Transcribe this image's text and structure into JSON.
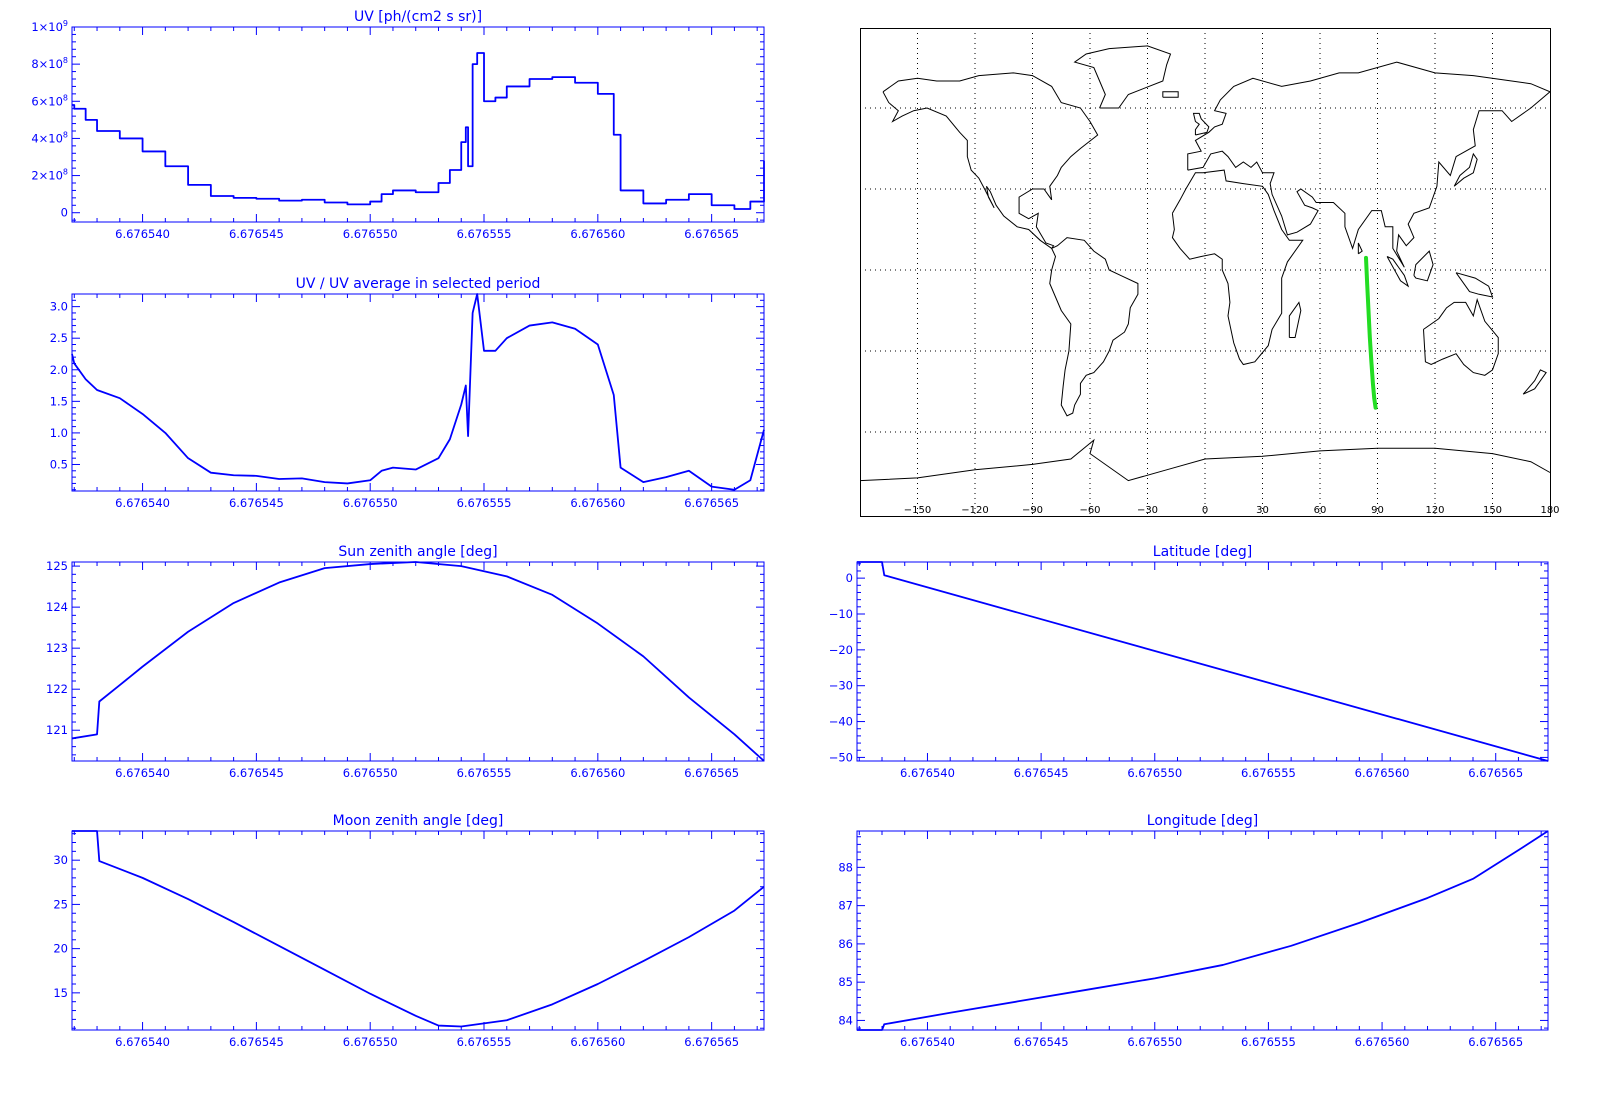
{
  "chart_data": [
    {
      "id": "uv",
      "type": "line",
      "title": "UV [ph/(cm2 s sr)]",
      "x_ticks": [
        "6.676540",
        "6.676545",
        "6.676550",
        "6.676555",
        "6.676560",
        "6.676565"
      ],
      "x_tick_values": [
        6.67654,
        6.676545,
        6.67655,
        6.676555,
        6.67656,
        6.676565
      ],
      "xlim": [
        6.6765369,
        6.6765673
      ],
      "y_ticks": [
        {
          "value": 0,
          "mant": "0",
          "exp": ""
        },
        {
          "value": 200000000,
          "mant": "2×10",
          "exp": "8"
        },
        {
          "value": 400000000,
          "mant": "4×10",
          "exp": "8"
        },
        {
          "value": 600000000,
          "mant": "6×10",
          "exp": "8"
        },
        {
          "value": 800000000,
          "mant": "8×10",
          "exp": "8"
        },
        {
          "value": 1000000000,
          "mant": "1×10",
          "exp": "9"
        }
      ],
      "ylim": [
        -50000000,
        1000000000
      ],
      "color": "#0000ff",
      "style": "step",
      "x": [
        6.6765369,
        6.676537,
        6.6765375,
        6.676538,
        6.676539,
        6.67654,
        6.676541,
        6.676542,
        6.676543,
        6.676544,
        6.676545,
        6.676546,
        6.676547,
        6.676548,
        6.676549,
        6.67655,
        6.6765505,
        6.676551,
        6.676552,
        6.676553,
        6.6765535,
        6.676554,
        6.6765542,
        6.6765543,
        6.6765545,
        6.6765547,
        6.676555,
        6.6765555,
        6.676556,
        6.676557,
        6.676558,
        6.676559,
        6.67656,
        6.6765607,
        6.676561,
        6.676562,
        6.676563,
        6.676564,
        6.676565,
        6.676566,
        6.6765667,
        6.6765673
      ],
      "y": [
        580000000,
        560000000,
        500000000,
        440000000,
        400000000,
        330000000,
        250000000,
        150000000,
        90000000,
        80000000,
        75000000,
        65000000,
        70000000,
        55000000,
        45000000,
        60000000,
        100000000,
        120000000,
        110000000,
        160000000,
        230000000,
        380000000,
        460000000,
        250000000,
        800000000,
        860000000,
        600000000,
        620000000,
        680000000,
        720000000,
        730000000,
        700000000,
        640000000,
        420000000,
        120000000,
        50000000,
        70000000,
        100000000,
        40000000,
        20000000,
        60000000,
        280000000
      ]
    },
    {
      "id": "uvratio",
      "type": "line",
      "title": "UV / UV average in selected period",
      "x_ticks": [
        "6.676540",
        "6.676545",
        "6.676550",
        "6.676555",
        "6.676560",
        "6.676565"
      ],
      "x_tick_values": [
        6.67654,
        6.676545,
        6.67655,
        6.676555,
        6.67656,
        6.676565
      ],
      "xlim": [
        6.6765369,
        6.6765673
      ],
      "y_ticks": [
        {
          "value": 0.5,
          "mant": "0.5",
          "exp": ""
        },
        {
          "value": 1,
          "mant": "1.0",
          "exp": ""
        },
        {
          "value": 1.5,
          "mant": "1.5",
          "exp": ""
        },
        {
          "value": 2,
          "mant": "2.0",
          "exp": ""
        },
        {
          "value": 2.5,
          "mant": "2.5",
          "exp": ""
        },
        {
          "value": 3,
          "mant": "3.0",
          "exp": ""
        }
      ],
      "ylim": [
        0.08,
        3.2
      ],
      "color": "#0000ff",
      "style": "line",
      "x": [
        6.6765369,
        6.676537,
        6.6765375,
        6.676538,
        6.676539,
        6.67654,
        6.676541,
        6.676542,
        6.676543,
        6.676544,
        6.676545,
        6.676546,
        6.676547,
        6.676548,
        6.676549,
        6.67655,
        6.6765505,
        6.676551,
        6.676552,
        6.676553,
        6.6765535,
        6.676554,
        6.6765542,
        6.6765543,
        6.6765545,
        6.6765547,
        6.676555,
        6.6765555,
        6.676556,
        6.676557,
        6.676558,
        6.676559,
        6.67656,
        6.6765607,
        6.676561,
        6.676562,
        6.676563,
        6.676564,
        6.676565,
        6.676566,
        6.6765667,
        6.6765673
      ],
      "y": [
        2.25,
        2.1,
        1.85,
        1.68,
        1.55,
        1.3,
        1.0,
        0.6,
        0.37,
        0.33,
        0.32,
        0.27,
        0.28,
        0.22,
        0.2,
        0.25,
        0.4,
        0.45,
        0.42,
        0.6,
        0.9,
        1.45,
        1.75,
        0.95,
        2.9,
        3.2,
        2.3,
        2.3,
        2.5,
        2.7,
        2.75,
        2.65,
        2.4,
        1.6,
        0.45,
        0.22,
        0.3,
        0.4,
        0.15,
        0.1,
        0.25,
        1.05
      ]
    },
    {
      "id": "sza",
      "type": "line",
      "title": "Sun zenith angle [deg]",
      "x_ticks": [
        "6.676540",
        "6.676545",
        "6.676550",
        "6.676555",
        "6.676560",
        "6.676565"
      ],
      "x_tick_values": [
        6.67654,
        6.676545,
        6.67655,
        6.676555,
        6.67656,
        6.676565
      ],
      "xlim": [
        6.6765369,
        6.6765673
      ],
      "y_ticks": [
        {
          "value": 121,
          "mant": "121",
          "exp": ""
        },
        {
          "value": 122,
          "mant": "122",
          "exp": ""
        },
        {
          "value": 123,
          "mant": "123",
          "exp": ""
        },
        {
          "value": 124,
          "mant": "124",
          "exp": ""
        },
        {
          "value": 125,
          "mant": "125",
          "exp": ""
        }
      ],
      "ylim": [
        120.25,
        125.1
      ],
      "color": "#0000ff",
      "style": "line",
      "x": [
        6.6765369,
        6.676538,
        6.6765381,
        6.676539,
        6.67654,
        6.676542,
        6.676544,
        6.676546,
        6.676548,
        6.67655,
        6.676552,
        6.676554,
        6.676556,
        6.676558,
        6.67656,
        6.676562,
        6.676564,
        6.676566,
        6.6765673
      ],
      "y": [
        120.8,
        120.9,
        121.7,
        122.1,
        122.55,
        123.4,
        124.1,
        124.6,
        124.95,
        125.05,
        125.1,
        125.0,
        124.75,
        124.3,
        123.6,
        122.8,
        121.8,
        120.9,
        120.25
      ]
    },
    {
      "id": "lat",
      "type": "line",
      "title": "Latitude [deg]",
      "x_ticks": [
        "6.676540",
        "6.676545",
        "6.676550",
        "6.676555",
        "6.676560",
        "6.676565"
      ],
      "x_tick_values": [
        6.67654,
        6.676545,
        6.67655,
        6.676555,
        6.67656,
        6.676565
      ],
      "xlim": [
        6.6765369,
        6.6765673
      ],
      "y_ticks": [
        {
          "value": 0,
          "mant": "0",
          "exp": ""
        },
        {
          "value": -10,
          "mant": "−10",
          "exp": ""
        },
        {
          "value": -20,
          "mant": "−20",
          "exp": ""
        },
        {
          "value": -30,
          "mant": "−30",
          "exp": ""
        },
        {
          "value": -40,
          "mant": "−40",
          "exp": ""
        },
        {
          "value": -50,
          "mant": "−50",
          "exp": ""
        }
      ],
      "ylim": [
        -51,
        4.5
      ],
      "color": "#0000ff",
      "style": "line",
      "x": [
        6.6765369,
        6.676538,
        6.6765381,
        6.6765673
      ],
      "y": [
        4.5,
        4.5,
        0.8,
        -51
      ]
    },
    {
      "id": "mza",
      "type": "line",
      "title": "Moon zenith angle [deg]",
      "x_ticks": [
        "6.676540",
        "6.676545",
        "6.676550",
        "6.676555",
        "6.676560",
        "6.676565"
      ],
      "x_tick_values": [
        6.67654,
        6.676545,
        6.67655,
        6.676555,
        6.67656,
        6.676565
      ],
      "xlim": [
        6.6765369,
        6.6765673
      ],
      "y_ticks": [
        {
          "value": 15,
          "mant": "15",
          "exp": ""
        },
        {
          "value": 20,
          "mant": "20",
          "exp": ""
        },
        {
          "value": 25,
          "mant": "25",
          "exp": ""
        },
        {
          "value": 30,
          "mant": "30",
          "exp": ""
        }
      ],
      "ylim": [
        10.8,
        33.3
      ],
      "color": "#0000ff",
      "style": "line",
      "x": [
        6.6765369,
        6.676538,
        6.6765381,
        6.67654,
        6.676542,
        6.676544,
        6.676546,
        6.676548,
        6.67655,
        6.676552,
        6.676553,
        6.676554,
        6.676556,
        6.676558,
        6.67656,
        6.676562,
        6.676564,
        6.676566,
        6.6765673
      ],
      "y": [
        33.3,
        33.3,
        29.9,
        28.0,
        25.6,
        23.0,
        20.3,
        17.6,
        14.9,
        12.4,
        11.3,
        11.2,
        11.9,
        13.7,
        16.0,
        18.6,
        21.3,
        24.3,
        27.0
      ]
    },
    {
      "id": "lon",
      "type": "line",
      "title": "Longitude [deg]",
      "x_ticks": [
        "6.676540",
        "6.676545",
        "6.676550",
        "6.676555",
        "6.676560",
        "6.676565"
      ],
      "x_tick_values": [
        6.67654,
        6.676545,
        6.67655,
        6.676555,
        6.67656,
        6.676565
      ],
      "xlim": [
        6.6765369,
        6.6765673
      ],
      "y_ticks": [
        {
          "value": 84,
          "mant": "84",
          "exp": ""
        },
        {
          "value": 85,
          "mant": "85",
          "exp": ""
        },
        {
          "value": 86,
          "mant": "86",
          "exp": ""
        },
        {
          "value": 87,
          "mant": "87",
          "exp": ""
        },
        {
          "value": 88,
          "mant": "88",
          "exp": ""
        }
      ],
      "ylim": [
        83.75,
        88.95
      ],
      "color": "#0000ff",
      "style": "line",
      "x": [
        6.6765369,
        6.676538,
        6.6765381,
        6.676541,
        6.676544,
        6.676547,
        6.67655,
        6.676553,
        6.676556,
        6.676559,
        6.676562,
        6.676564,
        6.676566,
        6.6765673
      ],
      "y": [
        83.75,
        83.75,
        83.9,
        84.2,
        84.5,
        84.8,
        85.1,
        85.45,
        85.95,
        86.55,
        87.2,
        87.7,
        88.45,
        88.95
      ]
    }
  ],
  "map": {
    "lon_ticks": [
      "−150",
      "−120",
      "−90",
      "−60",
      "−30",
      "0",
      "30",
      "60",
      "90",
      "120",
      "150",
      "180"
    ],
    "lon_tick_values": [
      -150,
      -120,
      -90,
      -60,
      -30,
      0,
      30,
      60,
      90,
      120,
      150,
      180
    ],
    "lat_grid": [
      -60,
      -30,
      0,
      30,
      60
    ],
    "track": {
      "color": "#22dd22",
      "lon": [
        84.0,
        84.6,
        85.3,
        86.0,
        86.8,
        87.6,
        88.3,
        89.0
      ],
      "lat": [
        4.5,
        -5.0,
        -15.0,
        -25.0,
        -34.0,
        -42.0,
        -47.5,
        -51.0
      ]
    }
  }
}
